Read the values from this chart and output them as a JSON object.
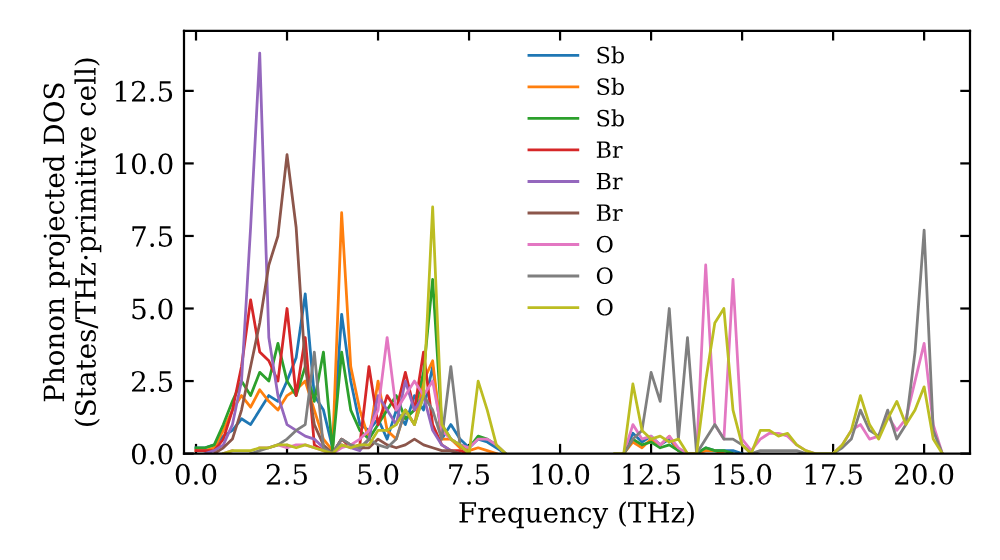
{
  "chart_data": {
    "type": "line",
    "xlabel": "Frequency (THz)",
    "ylabel": "Phonon projected DOS\n(States/THz·primitive cell)",
    "x": [
      0,
      0.25,
      0.5,
      0.75,
      1,
      1.25,
      1.5,
      1.75,
      2,
      2.25,
      2.5,
      2.75,
      3,
      3.25,
      3.5,
      3.75,
      4,
      4.25,
      4.5,
      4.75,
      5,
      5.25,
      5.5,
      5.75,
      6,
      6.25,
      6.5,
      6.75,
      7,
      7.25,
      7.5,
      7.75,
      8,
      8.25,
      8.5,
      8.75,
      9,
      9.25,
      9.5,
      9.75,
      10,
      10.25,
      10.5,
      10.75,
      11,
      11.25,
      11.5,
      11.75,
      12,
      12.25,
      12.5,
      12.75,
      13,
      13.25,
      13.5,
      13.75,
      14,
      14.25,
      14.5,
      14.75,
      15,
      15.25,
      15.5,
      15.75,
      16,
      16.25,
      16.5,
      16.75,
      17,
      17.25,
      17.5,
      17.75,
      18,
      18.25,
      18.5,
      18.75,
      19,
      19.25,
      19.5,
      19.75,
      20,
      20.25,
      20.5
    ],
    "xlim": [
      -0.33,
      21.26
    ],
    "ylim": [
      0,
      14.57
    ],
    "xticks": [
      {
        "value": 0,
        "label": "0.0"
      },
      {
        "value": 2.5,
        "label": "2.5"
      },
      {
        "value": 5,
        "label": "5.0"
      },
      {
        "value": 7.5,
        "label": "7.5"
      },
      {
        "value": 10,
        "label": "10.0"
      },
      {
        "value": 12.5,
        "label": "12.5"
      },
      {
        "value": 15,
        "label": "15.0"
      },
      {
        "value": 17.5,
        "label": "17.5"
      },
      {
        "value": 20,
        "label": "20.0"
      }
    ],
    "yticks": [
      {
        "value": 0,
        "label": "0.0"
      },
      {
        "value": 2.5,
        "label": "2.5"
      },
      {
        "value": 5,
        "label": "5.0"
      },
      {
        "value": 7.5,
        "label": "7.5"
      },
      {
        "value": 10,
        "label": "10.0"
      },
      {
        "value": 12.5,
        "label": "12.5"
      }
    ],
    "grid": false,
    "legend": "top center",
    "marker": "none",
    "line_style": "solid",
    "series": [
      {
        "name": "Sb",
        "color": "#1f77b4",
        "values": [
          0.2,
          0.2,
          0.3,
          0.6,
          0.8,
          1.2,
          1.0,
          1.5,
          2.0,
          1.8,
          2.5,
          3.3,
          5.5,
          2.0,
          1.5,
          0.2,
          4.8,
          2.5,
          1.0,
          0.8,
          1.2,
          0.5,
          1.5,
          1.0,
          2.0,
          1.5,
          3.0,
          0.5,
          1.0,
          0.5,
          0.2,
          0.5,
          0.4,
          0.2,
          0,
          null,
          null,
          null,
          null,
          null,
          null,
          null,
          null,
          null,
          null,
          null,
          null,
          0,
          0.7,
          0.4,
          0.6,
          0.3,
          0.5,
          0.1,
          0,
          0,
          0.2,
          0.1,
          0.1,
          0.1,
          0,
          null,
          null,
          null,
          null,
          null,
          null,
          null,
          null,
          null,
          null,
          null,
          null,
          null,
          null,
          null,
          null,
          null,
          null,
          null,
          null,
          null,
          null
        ]
      },
      {
        "name": "Sb",
        "color": "#ff7f0e",
        "values": [
          0.1,
          0.1,
          0.2,
          0.8,
          1.5,
          2.0,
          1.6,
          2.2,
          1.8,
          1.5,
          2.0,
          2.2,
          2.5,
          1.5,
          0.5,
          0.1,
          8.3,
          3.0,
          1.5,
          0.5,
          2.5,
          0.8,
          0.5,
          1.5,
          1.0,
          2.5,
          3.2,
          0.5,
          0.5,
          0.2,
          0.1,
          0.2,
          0.1,
          0,
          null,
          null,
          null,
          null,
          null,
          null,
          null,
          null,
          null,
          null,
          null,
          null,
          null,
          0,
          0.4,
          0.2,
          0.5,
          0.3,
          0.6,
          0.1,
          0,
          0,
          0.1,
          0.1,
          0,
          null,
          null,
          null,
          null,
          null,
          null,
          null,
          null,
          null,
          null,
          null,
          null,
          null,
          null,
          null,
          null,
          null,
          null,
          null,
          null,
          null,
          null,
          null,
          null
        ]
      },
      {
        "name": "Sb",
        "color": "#2ca02c",
        "values": [
          0.2,
          0.2,
          0.3,
          1.0,
          1.8,
          2.5,
          2.0,
          2.8,
          2.5,
          3.8,
          2.5,
          2.0,
          3.0,
          1.8,
          3.5,
          0.1,
          3.5,
          1.5,
          0.8,
          0.5,
          1.0,
          1.5,
          2.0,
          1.2,
          1.5,
          2.8,
          6.0,
          1.0,
          0.5,
          0.3,
          0.2,
          0.6,
          0.5,
          0.3,
          0,
          null,
          null,
          null,
          null,
          null,
          null,
          null,
          null,
          null,
          null,
          null,
          null,
          0,
          0.5,
          0.3,
          0.4,
          0.2,
          0.3,
          0.1,
          0,
          0,
          0.2,
          0.1,
          0.1,
          0,
          null,
          null,
          null,
          null,
          null,
          null,
          null,
          null,
          null,
          null,
          null,
          null,
          null,
          null,
          null,
          null,
          null,
          null,
          null,
          null,
          null,
          null,
          null
        ]
      },
      {
        "name": "Br",
        "color": "#d62728",
        "values": [
          0.1,
          0.1,
          0.1,
          0.5,
          1.5,
          3.0,
          5.3,
          3.5,
          3.2,
          2.5,
          5.0,
          2.0,
          4.0,
          0.3,
          0.1,
          0,
          0.5,
          0.2,
          0.3,
          3.0,
          1.0,
          2.0,
          1.5,
          2.8,
          1.5,
          3.5,
          1.0,
          0.3,
          0.1,
          0.1,
          0,
          null,
          null,
          null,
          null,
          null,
          null,
          null,
          null,
          null,
          null,
          null,
          null,
          null,
          null,
          null,
          null,
          null,
          null,
          null,
          null,
          null,
          null,
          null,
          null,
          null,
          null,
          null,
          null,
          null,
          null,
          null,
          null,
          null,
          null,
          null,
          null,
          null,
          null,
          null,
          null,
          null,
          null,
          null,
          null,
          null,
          null,
          null,
          null,
          null,
          null,
          null,
          null
        ]
      },
      {
        "name": "Br",
        "color": "#9467bd",
        "values": [
          null,
          0,
          0.1,
          0.3,
          1.0,
          2.5,
          7.8,
          13.8,
          4.0,
          2.0,
          1.0,
          0.8,
          0.6,
          0.5,
          0.2,
          null,
          0.3,
          0.2,
          0.1,
          0.5,
          2.0,
          1.5,
          1.0,
          2.5,
          1.5,
          2.0,
          0.8,
          0.3,
          0.1,
          0,
          null,
          null,
          null,
          null,
          null,
          null,
          null,
          null,
          null,
          null,
          null,
          null,
          null,
          null,
          null,
          null,
          null,
          null,
          null,
          null,
          null,
          null,
          null,
          null,
          null,
          null,
          null,
          null,
          null,
          null,
          null,
          null,
          null,
          null,
          null,
          null,
          null,
          null,
          null,
          null,
          null,
          null,
          null,
          null,
          null,
          null,
          null,
          null,
          null,
          null,
          null,
          null,
          null
        ]
      },
      {
        "name": "Br",
        "color": "#8c564b",
        "values": [
          null,
          null,
          0,
          0.2,
          0.5,
          1.5,
          3.0,
          4.5,
          6.5,
          7.5,
          10.3,
          7.8,
          3.0,
          1.0,
          0.3,
          0,
          0.5,
          0.3,
          0.2,
          0.2,
          0.5,
          0.3,
          0.2,
          0.3,
          0.5,
          0.3,
          0.2,
          0.1,
          0.1,
          0,
          null,
          null,
          null,
          null,
          null,
          null,
          null,
          null,
          null,
          null,
          null,
          null,
          null,
          null,
          null,
          null,
          null,
          null,
          null,
          null,
          null,
          null,
          null,
          null,
          null,
          null,
          null,
          null,
          null,
          null,
          null,
          null,
          null,
          null,
          null,
          null,
          null,
          null,
          null,
          null,
          null,
          null,
          null,
          null,
          null,
          null,
          null,
          null,
          null,
          null,
          null,
          null,
          null
        ]
      },
      {
        "name": "O",
        "color": "#e377c2",
        "values": [
          null,
          null,
          null,
          0,
          0.1,
          null,
          null,
          0.2,
          0.2,
          0.3,
          0.2,
          0.3,
          0.3,
          0.2,
          0.1,
          0,
          0.2,
          0.3,
          0.5,
          0.8,
          1.5,
          4.0,
          1.5,
          2.0,
          2.5,
          2.0,
          2.5,
          0.8,
          0.5,
          0.3,
          0.2,
          0.5,
          0.5,
          0.3,
          0,
          null,
          null,
          null,
          null,
          null,
          null,
          null,
          null,
          null,
          null,
          null,
          null,
          0,
          1.0,
          0.5,
          0.6,
          0.3,
          0.6,
          0.2,
          0,
          0,
          6.5,
          1.0,
          0.5,
          6.0,
          0.5,
          0.1,
          0.5,
          0.7,
          0.7,
          0.6,
          0.3,
          0.1,
          0,
          null,
          0,
          0.3,
          0.8,
          1.0,
          0.5,
          0.6,
          1.3,
          0.8,
          1.2,
          2.5,
          3.8,
          1.0,
          0
        ]
      },
      {
        "name": "O",
        "color": "#7f7f7f",
        "values": [
          null,
          null,
          null,
          null,
          null,
          null,
          0,
          0.1,
          0.2,
          0.3,
          0.5,
          0.8,
          1.0,
          3.5,
          0.2,
          0,
          0.5,
          0.3,
          0.2,
          0.5,
          0.3,
          0.2,
          0.5,
          1.5,
          1.0,
          2.0,
          1.5,
          0.5,
          3.0,
          0.3,
          0,
          null,
          null,
          null,
          null,
          null,
          null,
          null,
          null,
          null,
          null,
          null,
          null,
          null,
          null,
          null,
          null,
          0,
          0.5,
          0.8,
          2.8,
          1.8,
          5.0,
          0.5,
          4.0,
          0,
          0.5,
          1.0,
          0.5,
          0.5,
          0.3,
          0,
          0.1,
          0.1,
          0.1,
          0.1,
          0.1,
          0,
          null,
          null,
          0,
          0.2,
          0.5,
          1.5,
          0.8,
          0.6,
          1.5,
          0.5,
          1.0,
          3.5,
          7.7,
          0.8,
          0
        ]
      },
      {
        "name": "O",
        "color": "#bcbd22",
        "values": [
          null,
          null,
          null,
          0,
          0.1,
          0.1,
          0.1,
          0.2,
          0.2,
          0.3,
          0.3,
          0.2,
          0.3,
          0.2,
          0.1,
          0,
          0.3,
          0.2,
          0.3,
          0.3,
          0.8,
          0.8,
          1.0,
          1.5,
          1.0,
          2.0,
          8.5,
          1.0,
          0.5,
          0.3,
          0,
          2.5,
          1.5,
          0.3,
          0,
          null,
          null,
          null,
          null,
          null,
          null,
          null,
          null,
          null,
          null,
          null,
          0,
          0,
          2.4,
          0.8,
          0.5,
          0.6,
          0.4,
          0.5,
          0,
          0,
          2.5,
          4.5,
          5.0,
          1.5,
          0.3,
          0,
          0.8,
          0.8,
          0.6,
          0.7,
          0.3,
          0.1,
          0,
          0,
          0,
          0.3,
          0.8,
          2.0,
          1.0,
          0.5,
          1.2,
          1.8,
          1.0,
          1.5,
          2.3,
          0.5,
          0
        ]
      }
    ]
  }
}
